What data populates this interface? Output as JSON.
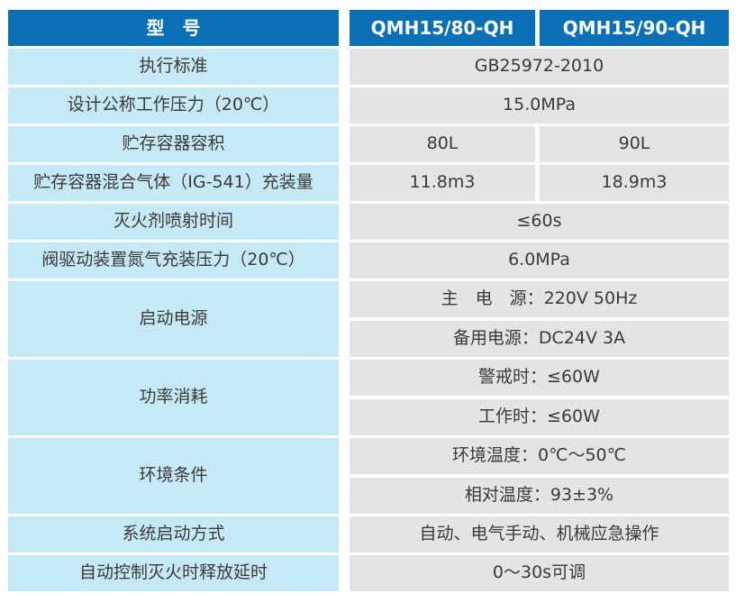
{
  "colors": {
    "header_bg": "#0a70b6",
    "header_text": "#ffffff",
    "label_bg": "#c6e9f6",
    "value_bg": "#e4e4e4",
    "text": "#3a3a3a"
  },
  "table": {
    "header": {
      "label": "型　号",
      "col1": "QMH15/80-QH",
      "col2": "QMH15/90-QH"
    },
    "rows": [
      {
        "label": "执行标准",
        "value": "GB25972-2010"
      },
      {
        "label": "设计公称工作压力（20℃）",
        "value": "15.0MPa"
      },
      {
        "label": "贮存容器容积",
        "values": [
          "80L",
          "90L"
        ]
      },
      {
        "label": "贮存容器混合气体（IG-541）充装量",
        "values": [
          "11.8m3",
          "18.9m3"
        ]
      },
      {
        "label": "灭火剂喷射时间",
        "value": "≤60s"
      },
      {
        "label": "阀驱动装置氮气充装压力（20℃）",
        "value": "6.0MPa"
      },
      {
        "label": "启动电源",
        "sub_values": [
          "主　电　源：220V 50Hz",
          "备用电源：DC24V 3A"
        ]
      },
      {
        "label": "功率消耗",
        "sub_values": [
          "警戒时：≤60W",
          "工作时：≤60W"
        ]
      },
      {
        "label": "环境条件",
        "sub_values": [
          "环境温度：0℃～50℃",
          "相对温度：93±3%"
        ]
      },
      {
        "label": "系统启动方式",
        "value": "自动、电气手动、机械应急操作"
      },
      {
        "label": "自动控制灭火时释放延时",
        "value": "0～30s可调"
      }
    ]
  }
}
